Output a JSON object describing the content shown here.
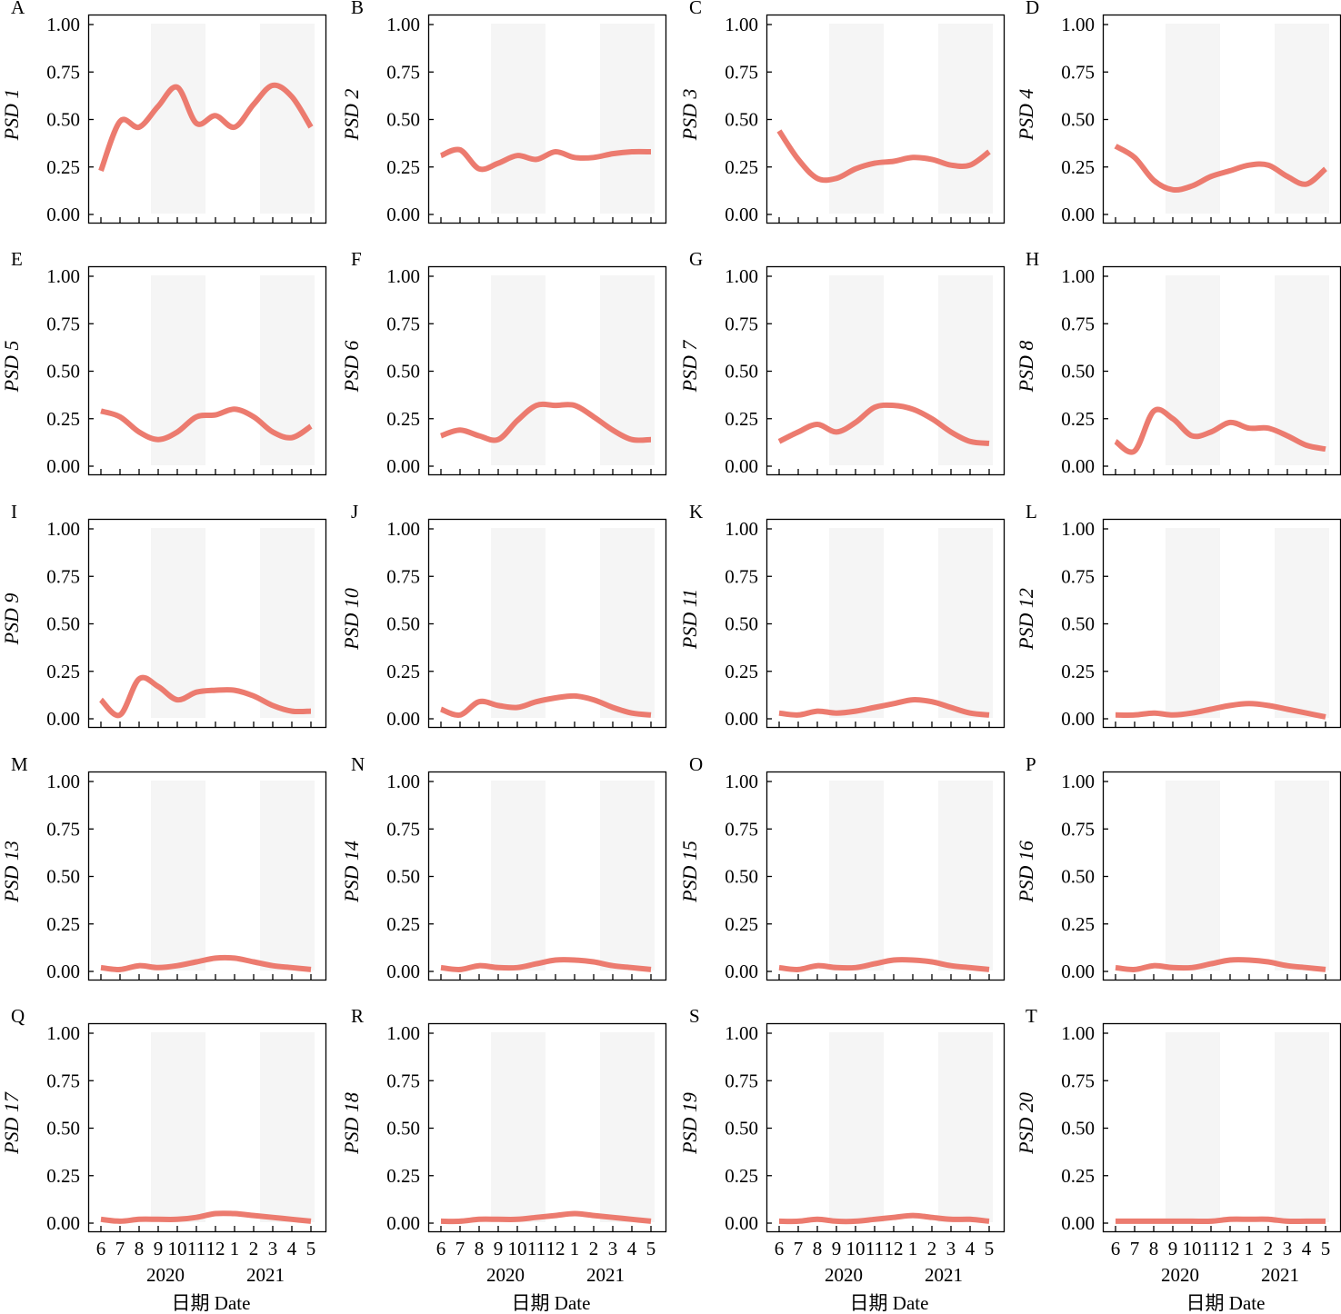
{
  "figure": {
    "x_tick_labels": [
      "6",
      "7",
      "8",
      "9",
      "10",
      "11",
      "12",
      "1",
      "2",
      "3",
      "4",
      "5"
    ],
    "year_labels": [
      "2020",
      "2021"
    ],
    "xlabel": "日期 Date",
    "y_tick_labels": [
      "0.00",
      "0.25",
      "0.50",
      "0.75",
      "1.00"
    ],
    "colors": {
      "line": "#ec7b6f",
      "season_band": "#f5f5f5",
      "frame": "#000000"
    }
  },
  "chart_data": [
    {
      "type": "line",
      "panel": "A",
      "ylabel": "PSD 1",
      "ylim": [
        0,
        1
      ],
      "x": [
        "6",
        "7",
        "8",
        "9",
        "10",
        "11",
        "12",
        "1",
        "2",
        "3",
        "4",
        "5"
      ],
      "values": [
        0.23,
        0.49,
        0.46,
        0.57,
        0.67,
        0.48,
        0.52,
        0.46,
        0.58,
        0.68,
        0.62,
        0.46
      ]
    },
    {
      "type": "line",
      "panel": "B",
      "ylabel": "PSD 2",
      "ylim": [
        0,
        1
      ],
      "x": [
        "6",
        "7",
        "8",
        "9",
        "10",
        "11",
        "12",
        "1",
        "2",
        "3",
        "4",
        "5"
      ],
      "values": [
        0.31,
        0.34,
        0.24,
        0.27,
        0.31,
        0.29,
        0.33,
        0.3,
        0.3,
        0.32,
        0.33,
        0.33
      ]
    },
    {
      "type": "line",
      "panel": "C",
      "ylabel": "PSD 3",
      "ylim": [
        0,
        1
      ],
      "x": [
        "6",
        "7",
        "8",
        "9",
        "10",
        "11",
        "12",
        "1",
        "2",
        "3",
        "4",
        "5"
      ],
      "values": [
        0.44,
        0.29,
        0.19,
        0.19,
        0.24,
        0.27,
        0.28,
        0.3,
        0.29,
        0.26,
        0.26,
        0.33
      ]
    },
    {
      "type": "line",
      "panel": "D",
      "ylabel": "PSD 4",
      "ylim": [
        0,
        1
      ],
      "x": [
        "6",
        "7",
        "8",
        "9",
        "10",
        "11",
        "12",
        "1",
        "2",
        "3",
        "4",
        "5"
      ],
      "values": [
        0.36,
        0.3,
        0.18,
        0.13,
        0.15,
        0.2,
        0.23,
        0.26,
        0.26,
        0.2,
        0.16,
        0.24
      ]
    },
    {
      "type": "line",
      "panel": "E",
      "ylabel": "PSD 5",
      "ylim": [
        0,
        1
      ],
      "x": [
        "6",
        "7",
        "8",
        "9",
        "10",
        "11",
        "12",
        "1",
        "2",
        "3",
        "4",
        "5"
      ],
      "values": [
        0.29,
        0.26,
        0.18,
        0.14,
        0.18,
        0.26,
        0.27,
        0.3,
        0.26,
        0.18,
        0.15,
        0.21
      ]
    },
    {
      "type": "line",
      "panel": "F",
      "ylabel": "PSD 6",
      "ylim": [
        0,
        1
      ],
      "x": [
        "6",
        "7",
        "8",
        "9",
        "10",
        "11",
        "12",
        "1",
        "2",
        "3",
        "4",
        "5"
      ],
      "values": [
        0.16,
        0.19,
        0.16,
        0.14,
        0.24,
        0.32,
        0.32,
        0.32,
        0.26,
        0.19,
        0.14,
        0.14
      ]
    },
    {
      "type": "line",
      "panel": "G",
      "ylabel": "PSD 7",
      "ylim": [
        0,
        1
      ],
      "x": [
        "6",
        "7",
        "8",
        "9",
        "10",
        "11",
        "12",
        "1",
        "2",
        "3",
        "4",
        "5"
      ],
      "values": [
        0.13,
        0.18,
        0.22,
        0.18,
        0.23,
        0.31,
        0.32,
        0.3,
        0.25,
        0.18,
        0.13,
        0.12
      ]
    },
    {
      "type": "line",
      "panel": "H",
      "ylabel": "PSD 8",
      "ylim": [
        0,
        1
      ],
      "x": [
        "6",
        "7",
        "8",
        "9",
        "10",
        "11",
        "12",
        "1",
        "2",
        "3",
        "4",
        "5"
      ],
      "values": [
        0.13,
        0.08,
        0.29,
        0.25,
        0.16,
        0.18,
        0.23,
        0.2,
        0.2,
        0.16,
        0.11,
        0.09
      ]
    },
    {
      "type": "line",
      "panel": "I",
      "ylabel": "PSD 9",
      "ylim": [
        0,
        1
      ],
      "x": [
        "6",
        "7",
        "8",
        "9",
        "10",
        "11",
        "12",
        "1",
        "2",
        "3",
        "4",
        "5"
      ],
      "values": [
        0.1,
        0.02,
        0.21,
        0.17,
        0.1,
        0.14,
        0.15,
        0.15,
        0.12,
        0.07,
        0.04,
        0.04
      ]
    },
    {
      "type": "line",
      "panel": "J",
      "ylabel": "PSD 10",
      "ylim": [
        0,
        1
      ],
      "x": [
        "6",
        "7",
        "8",
        "9",
        "10",
        "11",
        "12",
        "1",
        "2",
        "3",
        "4",
        "5"
      ],
      "values": [
        0.05,
        0.02,
        0.09,
        0.07,
        0.06,
        0.09,
        0.11,
        0.12,
        0.1,
        0.06,
        0.03,
        0.02
      ]
    },
    {
      "type": "line",
      "panel": "K",
      "ylabel": "PSD 11",
      "ylim": [
        0,
        1
      ],
      "x": [
        "6",
        "7",
        "8",
        "9",
        "10",
        "11",
        "12",
        "1",
        "2",
        "3",
        "4",
        "5"
      ],
      "values": [
        0.03,
        0.02,
        0.04,
        0.03,
        0.04,
        0.06,
        0.08,
        0.1,
        0.09,
        0.06,
        0.03,
        0.02
      ]
    },
    {
      "type": "line",
      "panel": "L",
      "ylabel": "PSD 12",
      "ylim": [
        0,
        1
      ],
      "x": [
        "6",
        "7",
        "8",
        "9",
        "10",
        "11",
        "12",
        "1",
        "2",
        "3",
        "4",
        "5"
      ],
      "values": [
        0.02,
        0.02,
        0.03,
        0.02,
        0.03,
        0.05,
        0.07,
        0.08,
        0.07,
        0.05,
        0.03,
        0.01
      ]
    },
    {
      "type": "line",
      "panel": "M",
      "ylabel": "PSD 13",
      "ylim": [
        0,
        1
      ],
      "x": [
        "6",
        "7",
        "8",
        "9",
        "10",
        "11",
        "12",
        "1",
        "2",
        "3",
        "4",
        "5"
      ],
      "values": [
        0.02,
        0.01,
        0.03,
        0.02,
        0.03,
        0.05,
        0.07,
        0.07,
        0.05,
        0.03,
        0.02,
        0.01
      ]
    },
    {
      "type": "line",
      "panel": "N",
      "ylabel": "PSD 14",
      "ylim": [
        0,
        1
      ],
      "x": [
        "6",
        "7",
        "8",
        "9",
        "10",
        "11",
        "12",
        "1",
        "2",
        "3",
        "4",
        "5"
      ],
      "values": [
        0.02,
        0.01,
        0.03,
        0.02,
        0.02,
        0.04,
        0.06,
        0.06,
        0.05,
        0.03,
        0.02,
        0.01
      ]
    },
    {
      "type": "line",
      "panel": "O",
      "ylabel": "PSD 15",
      "ylim": [
        0,
        1
      ],
      "x": [
        "6",
        "7",
        "8",
        "9",
        "10",
        "11",
        "12",
        "1",
        "2",
        "3",
        "4",
        "5"
      ],
      "values": [
        0.02,
        0.01,
        0.03,
        0.02,
        0.02,
        0.04,
        0.06,
        0.06,
        0.05,
        0.03,
        0.02,
        0.01
      ]
    },
    {
      "type": "line",
      "panel": "P",
      "ylabel": "PSD 16",
      "ylim": [
        0,
        1
      ],
      "x": [
        "6",
        "7",
        "8",
        "9",
        "10",
        "11",
        "12",
        "1",
        "2",
        "3",
        "4",
        "5"
      ],
      "values": [
        0.02,
        0.01,
        0.03,
        0.02,
        0.02,
        0.04,
        0.06,
        0.06,
        0.05,
        0.03,
        0.02,
        0.01
      ]
    },
    {
      "type": "line",
      "panel": "Q",
      "ylabel": "PSD 17",
      "ylim": [
        0,
        1
      ],
      "x": [
        "6",
        "7",
        "8",
        "9",
        "10",
        "11",
        "12",
        "1",
        "2",
        "3",
        "4",
        "5"
      ],
      "values": [
        0.02,
        0.01,
        0.02,
        0.02,
        0.02,
        0.03,
        0.05,
        0.05,
        0.04,
        0.03,
        0.02,
        0.01
      ]
    },
    {
      "type": "line",
      "panel": "R",
      "ylabel": "PSD 18",
      "ylim": [
        0,
        1
      ],
      "x": [
        "6",
        "7",
        "8",
        "9",
        "10",
        "11",
        "12",
        "1",
        "2",
        "3",
        "4",
        "5"
      ],
      "values": [
        0.01,
        0.01,
        0.02,
        0.02,
        0.02,
        0.03,
        0.04,
        0.05,
        0.04,
        0.03,
        0.02,
        0.01
      ]
    },
    {
      "type": "line",
      "panel": "S",
      "ylabel": "PSD 19",
      "ylim": [
        0,
        1
      ],
      "x": [
        "6",
        "7",
        "8",
        "9",
        "10",
        "11",
        "12",
        "1",
        "2",
        "3",
        "4",
        "5"
      ],
      "values": [
        0.01,
        0.01,
        0.02,
        0.01,
        0.01,
        0.02,
        0.03,
        0.04,
        0.03,
        0.02,
        0.02,
        0.01
      ]
    },
    {
      "type": "line",
      "panel": "T",
      "ylabel": "PSD 20",
      "ylim": [
        0,
        1
      ],
      "x": [
        "6",
        "7",
        "8",
        "9",
        "10",
        "11",
        "12",
        "1",
        "2",
        "3",
        "4",
        "5"
      ],
      "values": [
        0.01,
        0.01,
        0.01,
        0.01,
        0.01,
        0.01,
        0.02,
        0.02,
        0.02,
        0.01,
        0.01,
        0.01
      ]
    }
  ]
}
